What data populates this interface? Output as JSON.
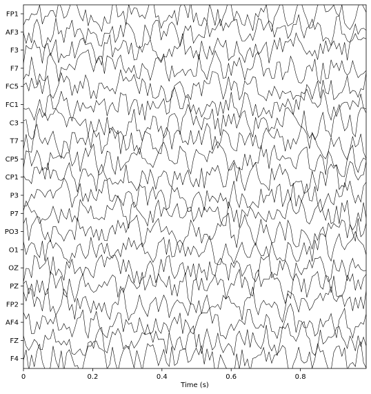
{
  "chart_data": {
    "type": "line",
    "title": "",
    "xlabel": "Time (s)",
    "ylabel": "",
    "xlim": [
      0,
      0.99
    ],
    "x_ticks": [
      0,
      0.2,
      0.4,
      0.6,
      0.8
    ],
    "x_tick_labels": [
      "0",
      "0.2",
      "0.4",
      "0.6",
      "0.8"
    ],
    "grid": false,
    "legend": "none",
    "line_color": "#000000",
    "channels": [
      "FP1",
      "AF3",
      "F3",
      "F7",
      "FC5",
      "FC1",
      "C3",
      "T7",
      "CP5",
      "CP1",
      "P3",
      "P7",
      "PO3",
      "O1",
      "OZ",
      "PZ",
      "FP2",
      "AF4",
      "FZ",
      "F4"
    ],
    "samples_per_channel": 128,
    "signal_note": "dense random-like EEG traces, amplitude roughly one channel spacing"
  }
}
